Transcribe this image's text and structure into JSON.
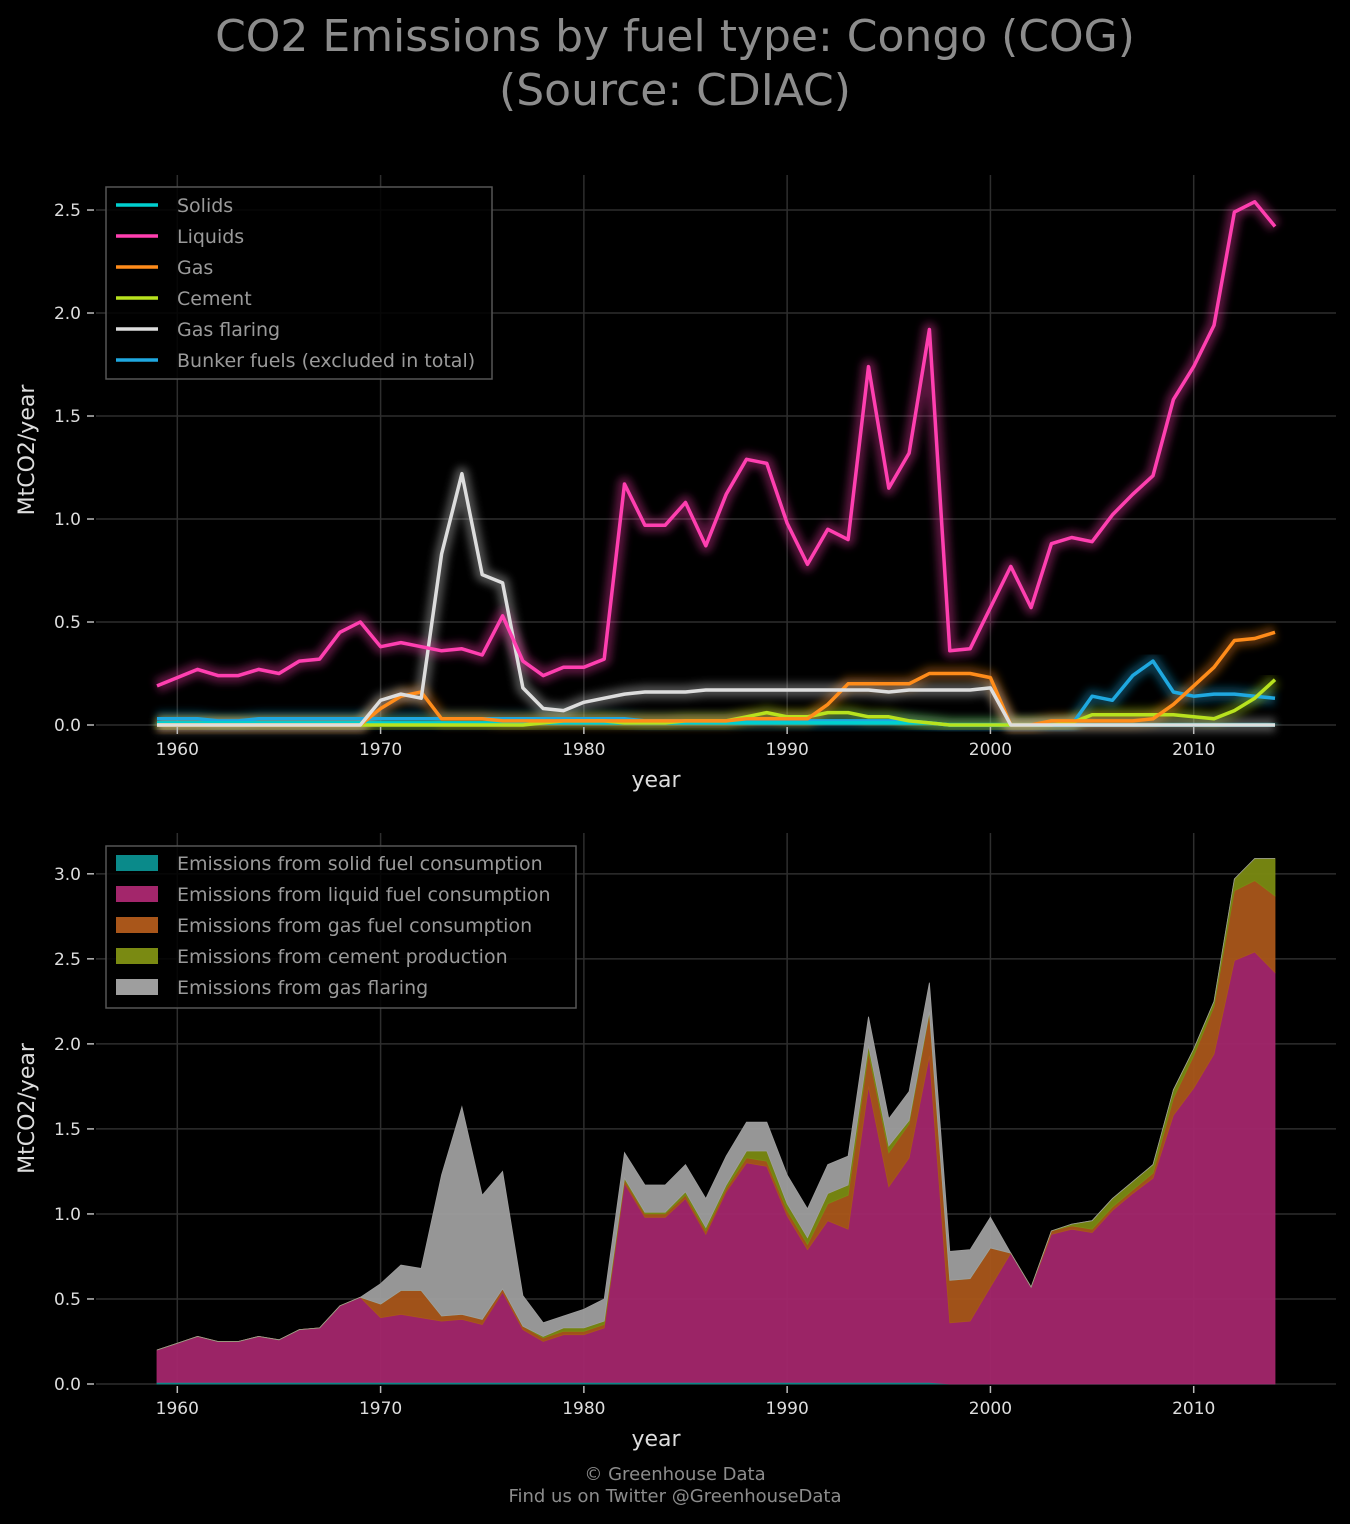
{
  "title": {
    "line1": "CO2 Emissions by fuel type: Congo (COG)",
    "line2": "(Source: CDIAC)"
  },
  "footer": {
    "line1": "© Greenhouse Data",
    "line2": "Find us on Twitter @GreenhouseData"
  },
  "chart_data": [
    {
      "type": "line",
      "xlabel": "year",
      "ylabel": "MtCO2/year",
      "xlim": [
        1956,
        2017
      ],
      "ylim": [
        0,
        2.67
      ],
      "xticks": [
        1960,
        1970,
        1980,
        1990,
        2000,
        2010
      ],
      "yticks": [
        "0.0",
        "0.5",
        "1.0",
        "1.5",
        "2.0",
        "2.5"
      ],
      "grid": true,
      "legend_position": "top-left",
      "x": [
        1959,
        1960,
        1961,
        1962,
        1963,
        1964,
        1965,
        1966,
        1967,
        1968,
        1969,
        1970,
        1971,
        1972,
        1973,
        1974,
        1975,
        1976,
        1977,
        1978,
        1979,
        1980,
        1981,
        1982,
        1983,
        1984,
        1985,
        1986,
        1987,
        1988,
        1989,
        1990,
        1991,
        1992,
        1993,
        1994,
        1995,
        1996,
        1997,
        1998,
        1999,
        2000,
        2001,
        2002,
        2003,
        2004,
        2005,
        2006,
        2007,
        2008,
        2009,
        2010,
        2011,
        2012,
        2013,
        2014
      ],
      "series": [
        {
          "name": "Solids",
          "color": "#00d0d0",
          "values": [
            0.01,
            0.01,
            0.01,
            0.01,
            0.01,
            0.01,
            0.01,
            0.01,
            0.01,
            0.01,
            0.01,
            0.01,
            0.01,
            0.01,
            0.01,
            0.01,
            0.01,
            0.01,
            0.01,
            0.01,
            0.01,
            0.01,
            0.01,
            0.01,
            0.01,
            0.01,
            0.01,
            0.01,
            0.01,
            0.01,
            0.01,
            0.01,
            0.01,
            0.01,
            0.01,
            0.01,
            0.01,
            0.01,
            0.01,
            0,
            0,
            0,
            0,
            0,
            0,
            0,
            0,
            0,
            0,
            0,
            0,
            0,
            0,
            0,
            0,
            0
          ]
        },
        {
          "name": "Liquids",
          "color": "#ff3fb0",
          "values": [
            0.19,
            0.23,
            0.27,
            0.24,
            0.24,
            0.27,
            0.25,
            0.31,
            0.32,
            0.45,
            0.5,
            0.38,
            0.4,
            0.38,
            0.36,
            0.37,
            0.34,
            0.53,
            0.31,
            0.24,
            0.28,
            0.28,
            0.32,
            1.17,
            0.97,
            0.97,
            1.08,
            0.87,
            1.12,
            1.29,
            1.27,
            0.98,
            0.78,
            0.95,
            0.9,
            1.74,
            1.15,
            1.32,
            1.92,
            0.36,
            0.37,
            0.57,
            0.77,
            0.57,
            0.88,
            0.91,
            0.89,
            1.02,
            1.12,
            1.21,
            1.58,
            1.74,
            1.94,
            2.49,
            2.54,
            2.42
          ]
        },
        {
          "name": "Gas",
          "color": "#ff8c1a",
          "values": [
            0,
            0,
            0,
            0,
            0,
            0,
            0,
            0,
            0,
            0,
            0,
            0.08,
            0.14,
            0.16,
            0.03,
            0.03,
            0.03,
            0.02,
            0.02,
            0.02,
            0.02,
            0.02,
            0.02,
            0.02,
            0.02,
            0.02,
            0.02,
            0.02,
            0.02,
            0.03,
            0.03,
            0.03,
            0.03,
            0.1,
            0.2,
            0.2,
            0.2,
            0.2,
            0.25,
            0.25,
            0.25,
            0.23,
            0,
            0,
            0.02,
            0.02,
            0.02,
            0.02,
            0.02,
            0.03,
            0.1,
            0.19,
            0.28,
            0.41,
            0.42,
            0.45
          ]
        },
        {
          "name": "Cement",
          "color": "#b8e21e",
          "values": [
            0,
            0,
            0,
            0,
            0,
            0,
            0,
            0,
            0,
            0,
            0,
            0,
            0,
            0,
            0,
            0,
            0,
            0,
            0,
            0.01,
            0.02,
            0.02,
            0.02,
            0.01,
            0.01,
            0.01,
            0.02,
            0.02,
            0.02,
            0.04,
            0.06,
            0.04,
            0.04,
            0.06,
            0.06,
            0.04,
            0.04,
            0.02,
            0.01,
            0,
            0,
            0,
            0,
            0,
            0,
            0.01,
            0.05,
            0.05,
            0.05,
            0.05,
            0.05,
            0.04,
            0.03,
            0.07,
            0.13,
            0.22
          ]
        },
        {
          "name": "Gas flaring",
          "color": "#dddddd",
          "values": [
            0,
            0,
            0,
            0,
            0,
            0,
            0,
            0,
            0,
            0,
            0,
            0.12,
            0.15,
            0.13,
            0.83,
            1.22,
            0.73,
            0.69,
            0.18,
            0.08,
            0.07,
            0.11,
            0.13,
            0.15,
            0.16,
            0.16,
            0.16,
            0.17,
            0.17,
            0.17,
            0.17,
            0.17,
            0.17,
            0.17,
            0.17,
            0.17,
            0.16,
            0.17,
            0.17,
            0.17,
            0.17,
            0.18,
            0,
            0,
            0,
            0,
            0,
            0,
            0,
            0,
            0,
            0,
            0,
            0,
            0,
            0
          ]
        },
        {
          "name": "Bunker fuels (excluded in total)",
          "color": "#1fa8e0",
          "values": [
            0.03,
            0.03,
            0.03,
            0.02,
            0.02,
            0.03,
            0.03,
            0.03,
            0.03,
            0.03,
            0.03,
            0.03,
            0.03,
            0.03,
            0.03,
            0.03,
            0.03,
            0.03,
            0.03,
            0.03,
            0.03,
            0.03,
            0.03,
            0.03,
            0.02,
            0.02,
            0.02,
            0.02,
            0.02,
            0.02,
            0.02,
            0.02,
            0.02,
            0.02,
            0.02,
            0.02,
            0.02,
            0.02,
            0.01,
            0,
            0,
            0,
            0,
            0,
            0,
            0,
            0.14,
            0.12,
            0.24,
            0.31,
            0.16,
            0.14,
            0.15,
            0.15,
            0.14,
            0.13
          ]
        }
      ]
    },
    {
      "type": "area",
      "stacked": true,
      "xlabel": "year",
      "ylabel": "MtCO2/year",
      "xlim": [
        1956,
        2017
      ],
      "ylim": [
        0,
        3.24
      ],
      "xticks": [
        1960,
        1970,
        1980,
        1990,
        2000,
        2010
      ],
      "yticks": [
        "0.0",
        "0.5",
        "1.0",
        "1.5",
        "2.0",
        "2.5",
        "3.0"
      ],
      "grid": true,
      "legend_position": "top-left",
      "series": [
        {
          "name": "Emissions from solid fuel consumption",
          "color": "#0a8a8a"
        },
        {
          "name": "Emissions from liquid fuel consumption",
          "color": "#a3266b"
        },
        {
          "name": "Emissions from gas fuel consumption",
          "color": "#a9561a"
        },
        {
          "name": "Emissions from cement production",
          "color": "#7a8a12"
        },
        {
          "name": "Emissions from gas flaring",
          "color": "#9e9e9e"
        }
      ],
      "stack_source": "same yearly values as the first chart (Solids, Liquids, Gas, Cement, Gas flaring)"
    }
  ]
}
